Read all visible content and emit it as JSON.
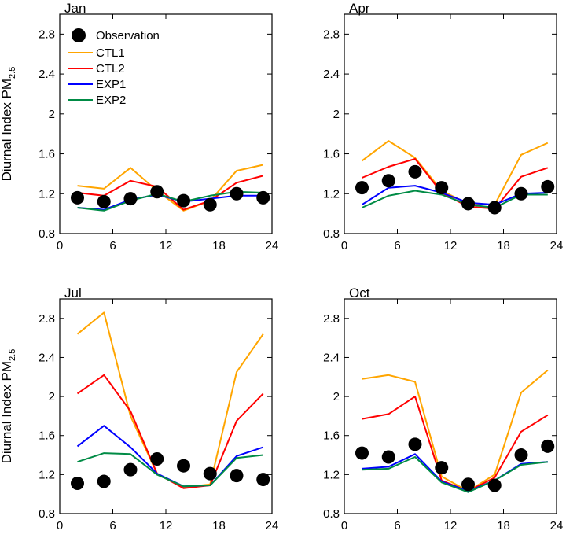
{
  "chart_data": [
    {
      "type": "line",
      "title": "Jan",
      "ylabel": "Diurnal Index PM",
      "ylabel_sub": "2.5",
      "xlim": [
        0,
        24
      ],
      "ylim": [
        0.8,
        3.0
      ],
      "xticks": [
        0,
        6,
        12,
        18,
        24
      ],
      "yticks": [
        0.8,
        1.2,
        1.6,
        2.0,
        2.4,
        2.8
      ],
      "x": [
        2,
        5,
        8,
        11,
        14,
        17,
        20,
        23
      ],
      "legend": {
        "position": "top-left",
        "show": true
      },
      "observation": {
        "name": "Observation",
        "values": [
          1.16,
          1.12,
          1.15,
          1.22,
          1.13,
          1.09,
          1.2,
          1.16
        ]
      },
      "series": [
        {
          "name": "CTL1",
          "color": "#ffa500",
          "values": [
            1.28,
            1.25,
            1.46,
            1.23,
            1.03,
            1.13,
            1.43,
            1.49
          ]
        },
        {
          "name": "CTL2",
          "color": "#ff0000",
          "values": [
            1.21,
            1.18,
            1.33,
            1.27,
            1.04,
            1.13,
            1.31,
            1.38
          ]
        },
        {
          "name": "EXP1",
          "color": "#0000ff",
          "values": [
            1.06,
            1.04,
            1.14,
            1.19,
            1.12,
            1.15,
            1.18,
            1.18
          ]
        },
        {
          "name": "EXP2",
          "color": "#008b45",
          "values": [
            1.06,
            1.03,
            1.13,
            1.2,
            1.12,
            1.18,
            1.22,
            1.21
          ]
        }
      ]
    },
    {
      "type": "line",
      "title": "Apr",
      "ylabel": "",
      "ylabel_sub": "",
      "xlim": [
        0,
        24
      ],
      "ylim": [
        0.8,
        3.0
      ],
      "xticks": [
        0,
        6,
        12,
        18,
        24
      ],
      "yticks": [
        0.8,
        1.2,
        1.6,
        2.0,
        2.4,
        2.8
      ],
      "x": [
        2,
        5,
        8,
        11,
        14,
        17,
        20,
        23
      ],
      "legend": {
        "show": false
      },
      "observation": {
        "name": "Observation",
        "values": [
          1.26,
          1.33,
          1.42,
          1.26,
          1.1,
          1.06,
          1.2,
          1.27
        ]
      },
      "series": [
        {
          "name": "CTL1",
          "color": "#ffa500",
          "values": [
            1.53,
            1.73,
            1.56,
            1.23,
            1.1,
            1.09,
            1.59,
            1.71
          ]
        },
        {
          "name": "CTL2",
          "color": "#ff0000",
          "values": [
            1.36,
            1.47,
            1.55,
            1.21,
            1.07,
            1.05,
            1.37,
            1.46
          ]
        },
        {
          "name": "EXP1",
          "color": "#0000ff",
          "values": [
            1.09,
            1.26,
            1.28,
            1.21,
            1.11,
            1.09,
            1.2,
            1.21
          ]
        },
        {
          "name": "EXP2",
          "color": "#008b45",
          "values": [
            1.06,
            1.18,
            1.23,
            1.19,
            1.09,
            1.06,
            1.19,
            1.19
          ]
        }
      ]
    },
    {
      "type": "line",
      "title": "Jul",
      "ylabel": "Diurnal Index PM",
      "ylabel_sub": "2.5",
      "xlim": [
        0,
        24
      ],
      "ylim": [
        0.8,
        3.0
      ],
      "xticks": [
        0,
        6,
        12,
        18,
        24
      ],
      "yticks": [
        0.8,
        1.2,
        1.6,
        2.0,
        2.4,
        2.8
      ],
      "x": [
        2,
        5,
        8,
        11,
        14,
        17,
        20,
        23
      ],
      "legend": {
        "show": false
      },
      "observation": {
        "name": "Observation",
        "values": [
          1.11,
          1.13,
          1.25,
          1.36,
          1.29,
          1.21,
          1.19,
          1.15
        ]
      },
      "series": [
        {
          "name": "CTL1",
          "color": "#ffa500",
          "values": [
            2.64,
            2.86,
            1.8,
            1.21,
            1.07,
            1.1,
            2.25,
            2.64
          ]
        },
        {
          "name": "CTL2",
          "color": "#ff0000",
          "values": [
            2.03,
            2.22,
            1.85,
            1.21,
            1.06,
            1.09,
            1.75,
            2.03
          ]
        },
        {
          "name": "EXP1",
          "color": "#0000ff",
          "values": [
            1.49,
            1.7,
            1.48,
            1.21,
            1.08,
            1.09,
            1.39,
            1.48
          ]
        },
        {
          "name": "EXP2",
          "color": "#008b45",
          "values": [
            1.33,
            1.42,
            1.41,
            1.2,
            1.08,
            1.09,
            1.37,
            1.4
          ]
        }
      ]
    },
    {
      "type": "line",
      "title": "Oct",
      "ylabel": "",
      "ylabel_sub": "",
      "xlim": [
        0,
        24
      ],
      "ylim": [
        0.8,
        3.0
      ],
      "xticks": [
        0,
        6,
        12,
        18,
        24
      ],
      "yticks": [
        0.8,
        1.2,
        1.6,
        2.0,
        2.4,
        2.8
      ],
      "x": [
        2,
        5,
        8,
        11,
        14,
        17,
        20,
        23
      ],
      "legend": {
        "show": false
      },
      "observation": {
        "name": "Observation",
        "values": [
          1.42,
          1.38,
          1.51,
          1.27,
          1.1,
          1.09,
          1.4,
          1.49
        ]
      },
      "series": [
        {
          "name": "CTL1",
          "color": "#ffa500",
          "values": [
            2.18,
            2.22,
            2.15,
            1.18,
            1.03,
            1.2,
            2.04,
            2.27
          ]
        },
        {
          "name": "CTL2",
          "color": "#ff0000",
          "values": [
            1.77,
            1.82,
            2.0,
            1.14,
            1.03,
            1.17,
            1.64,
            1.81
          ]
        },
        {
          "name": "EXP1",
          "color": "#0000ff",
          "values": [
            1.26,
            1.28,
            1.41,
            1.13,
            1.03,
            1.14,
            1.31,
            1.33
          ]
        },
        {
          "name": "EXP2",
          "color": "#008b45",
          "values": [
            1.25,
            1.26,
            1.38,
            1.12,
            1.02,
            1.14,
            1.3,
            1.33
          ]
        }
      ]
    }
  ]
}
